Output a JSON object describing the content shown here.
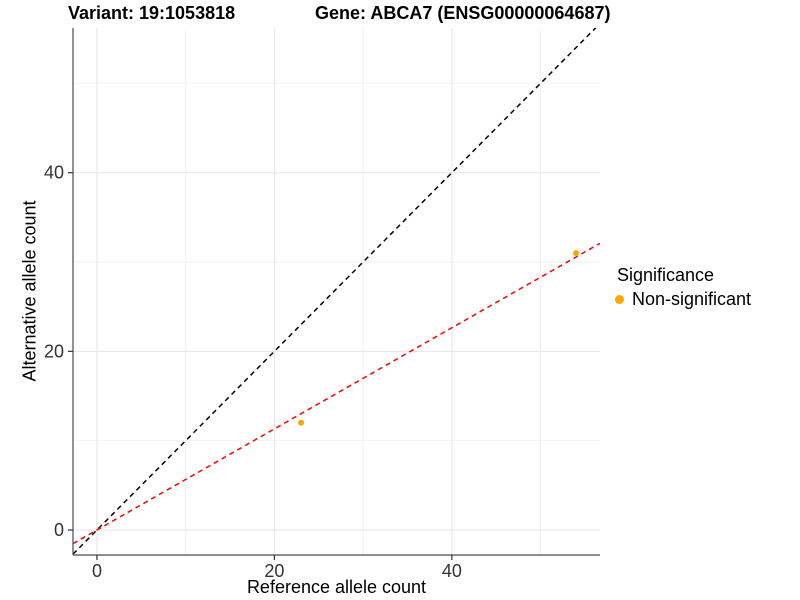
{
  "titles": {
    "left": "Variant: 19:1053818",
    "right": "Gene: ABCA7 (ENSG00000064687)"
  },
  "chart_data": {
    "type": "scatter",
    "xlabel": "Reference allele count",
    "ylabel": "Alternative allele count",
    "xlim": [
      -2.7,
      56.7
    ],
    "ylim": [
      -2.8,
      56.2
    ],
    "x_ticks": [
      0,
      20,
      40
    ],
    "y_ticks": [
      0,
      20,
      40
    ],
    "x_minor_ticks": [
      10,
      30,
      50
    ],
    "y_minor_ticks": [
      10,
      30,
      50
    ],
    "grid": "major and minor gridlines, light gray on white",
    "series": [
      {
        "name": "Non-significant",
        "color": "#FFA500",
        "points": [
          {
            "x": 23,
            "y": 12
          },
          {
            "x": 54,
            "y": 31
          }
        ]
      }
    ],
    "reference_lines": [
      {
        "name": "identity-line",
        "slope": 1.0,
        "intercept": 0,
        "color": "#000000",
        "linetype": "dashed"
      },
      {
        "name": "fit-line",
        "slope": 0.566,
        "intercept": 0,
        "color": "#FF0000",
        "linetype": "dashed"
      }
    ],
    "legend": {
      "title": "Significance",
      "position": "right",
      "items": [
        {
          "label": "Non-significant",
          "color": "#FFA500"
        }
      ]
    }
  },
  "style": {
    "major_grid_color": "#E5E5E5",
    "minor_grid_color": "#F2F2F2",
    "axis_line_color": "#4A4A4A",
    "tick_color": "#333333",
    "tick_label_color": "#333333"
  }
}
